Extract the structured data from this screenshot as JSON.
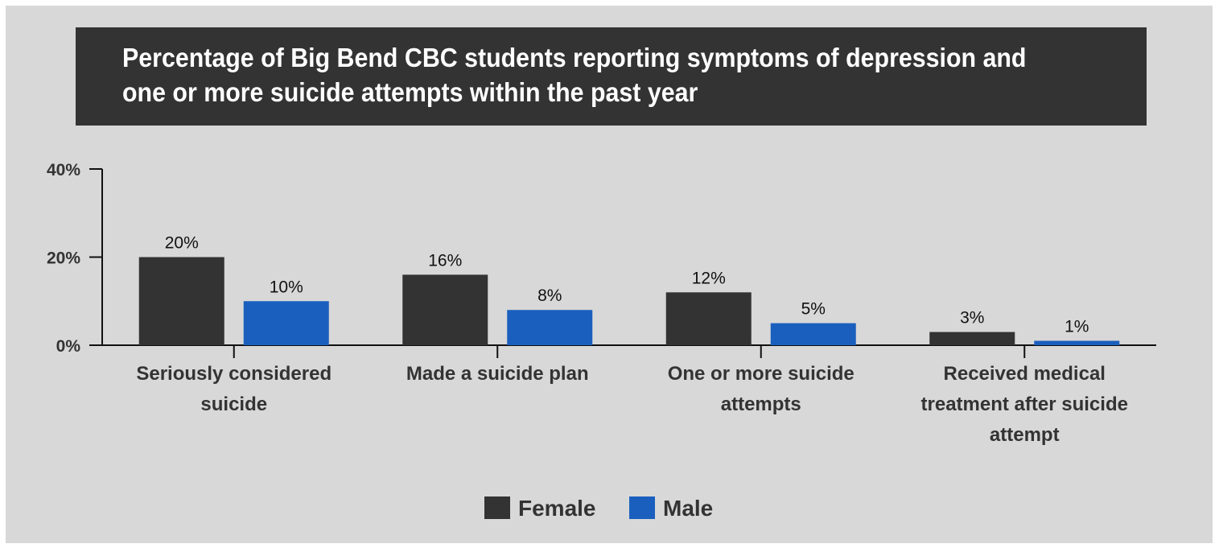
{
  "chart_data": {
    "type": "bar",
    "title": "Percentage of Big Bend CBC students reporting symptoms of depression and one or more suicide attempts within the past year",
    "categories": [
      [
        "Seriously considered",
        "suicide"
      ],
      [
        "Made a suicide plan"
      ],
      [
        "One or more suicide",
        "attempts"
      ],
      [
        "Received medical",
        "treatment after suicide",
        "attempt"
      ]
    ],
    "series": [
      {
        "name": "Female",
        "color": "#333333",
        "values": [
          20,
          16,
          12,
          3
        ]
      },
      {
        "name": "Male",
        "color": "#1a5fbe",
        "values": [
          10,
          8,
          5,
          1
        ]
      }
    ],
    "value_suffix": "%",
    "yticks": [
      "0%",
      "20%",
      "40%"
    ],
    "ytick_values": [
      0,
      20,
      40
    ],
    "ylim": [
      0,
      40
    ],
    "legend": "bottom-center",
    "grid": false
  }
}
